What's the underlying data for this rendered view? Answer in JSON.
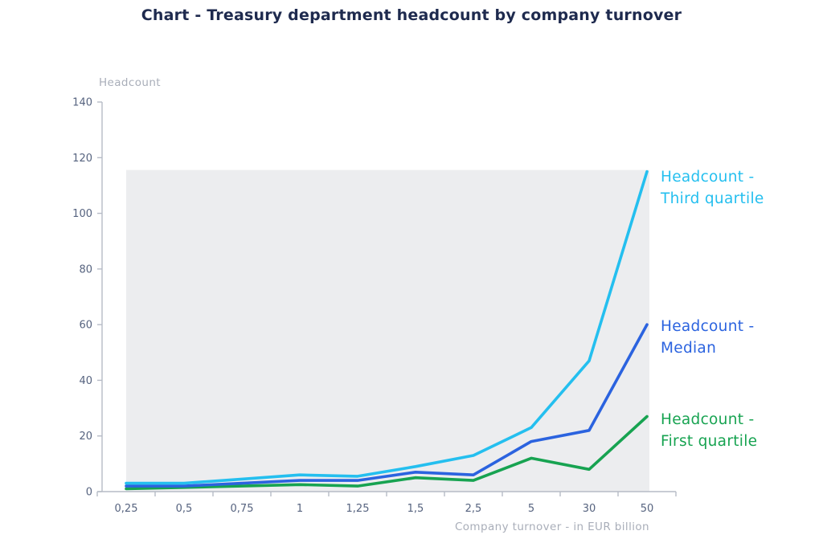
{
  "title": "Chart - Treasury department headcount by company turnover",
  "colors": {
    "title_text": "#1E2A4E",
    "axis_line": "#B6BBC6",
    "tick_label": "#56637F",
    "axis_title_text": "#A9AEB9",
    "plot_background": "#ECEDEF",
    "third_quartile": "#24BFEF",
    "median": "#2B63DF",
    "first_quartile": "#17A351"
  },
  "chart_data": {
    "type": "line",
    "title": "Chart - Treasury department headcount by company turnover",
    "xlabel": "Company turnover - in EUR billion",
    "ylabel": "Headcount",
    "categories": [
      "0,25",
      "0,5",
      "0,75",
      "1",
      "1,25",
      "1,5",
      "2,5",
      "5",
      "30",
      "50"
    ],
    "series": [
      {
        "name": "Headcount - Third quartile",
        "legend_lines": [
          "Headcount -",
          "Third quartile"
        ],
        "color": "#24BFEF",
        "values": [
          3,
          3,
          4.5,
          6,
          5.5,
          9,
          13,
          23,
          47,
          115
        ]
      },
      {
        "name": "Headcount - Median",
        "legend_lines": [
          "Headcount -",
          "Median"
        ],
        "color": "#2B63DF",
        "values": [
          2,
          2,
          3,
          4,
          4,
          7,
          6,
          18,
          22,
          60
        ]
      },
      {
        "name": "Headcount - First quartile",
        "legend_lines": [
          "Headcount -",
          "First quartile"
        ],
        "color": "#17A351",
        "values": [
          1,
          1.5,
          2,
          2.5,
          2,
          5,
          4,
          12,
          8,
          27
        ]
      }
    ],
    "ylim": [
      0,
      140
    ],
    "ytick_step": 20,
    "grid": false,
    "legend_position": "right",
    "plot_band_max": 115
  }
}
